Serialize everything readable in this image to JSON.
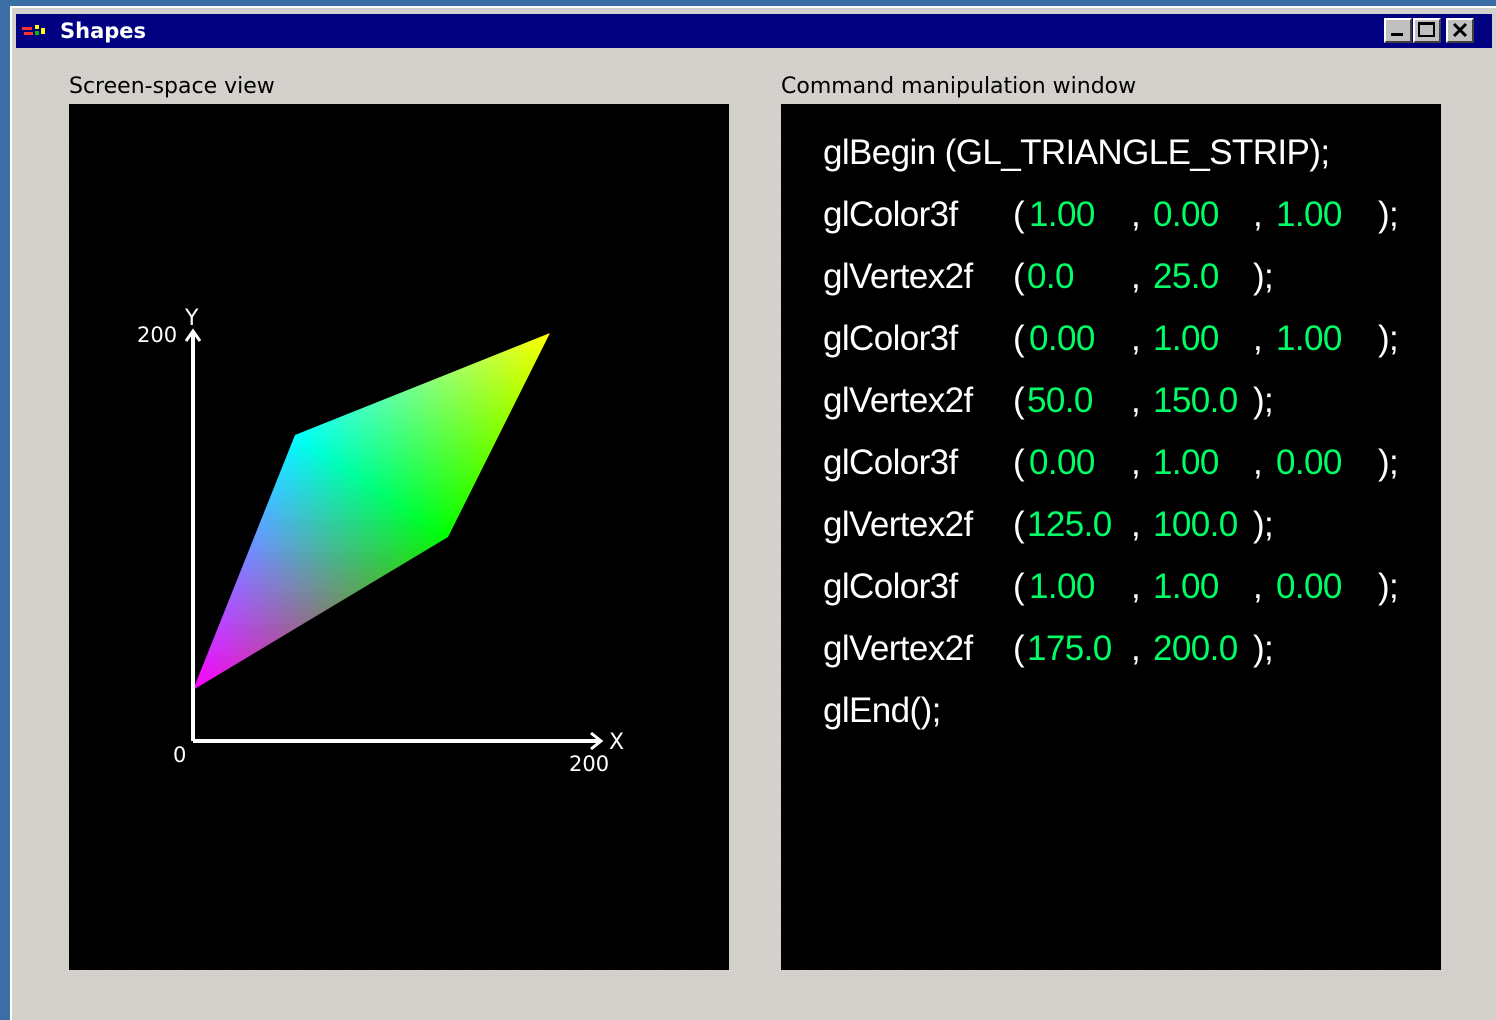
{
  "window": {
    "title": "Shapes",
    "icon": "app-icon",
    "controls": [
      "minimize-icon",
      "maximize-icon",
      "close-icon"
    ]
  },
  "left_panel": {
    "label": "Screen-space view",
    "axes": {
      "x_label": "X",
      "y_label": "Y",
      "origin_label": "0",
      "x_max_label": "200",
      "y_max_label": "200",
      "range": [
        0,
        200
      ]
    },
    "vertices": [
      {
        "x": 0.0,
        "y": 25.0,
        "color": "#ff00ff"
      },
      {
        "x": 50.0,
        "y": 150.0,
        "color": "#00ffff"
      },
      {
        "x": 125.0,
        "y": 100.0,
        "color": "#00ff00"
      },
      {
        "x": 175.0,
        "y": 200.0,
        "color": "#ffff00"
      }
    ]
  },
  "right_panel": {
    "label": "Command manipulation window",
    "begin": "glBegin (GL_TRIANGLE_STRIP);",
    "color_fn": "glColor3f",
    "vertex_fn": "glVertex2f",
    "open_paren": "(",
    "comma": ",",
    "close": ");",
    "end": "glEnd();",
    "commands": [
      {
        "fn": "glColor3f",
        "args": [
          "1.00",
          "0.00",
          "1.00"
        ]
      },
      {
        "fn": "glVertex2f",
        "args": [
          "0.0",
          "25.0"
        ]
      },
      {
        "fn": "glColor3f",
        "args": [
          "0.00",
          "1.00",
          "1.00"
        ]
      },
      {
        "fn": "glVertex2f",
        "args": [
          "50.0",
          "150.0"
        ]
      },
      {
        "fn": "glColor3f",
        "args": [
          "0.00",
          "1.00",
          "0.00"
        ]
      },
      {
        "fn": "glVertex2f",
        "args": [
          "125.0",
          "100.0"
        ]
      },
      {
        "fn": "glColor3f",
        "args": [
          "1.00",
          "1.00",
          "0.00"
        ]
      },
      {
        "fn": "glVertex2f",
        "args": [
          "175.0",
          "200.0"
        ]
      }
    ],
    "value_color": "#00ff66"
  }
}
